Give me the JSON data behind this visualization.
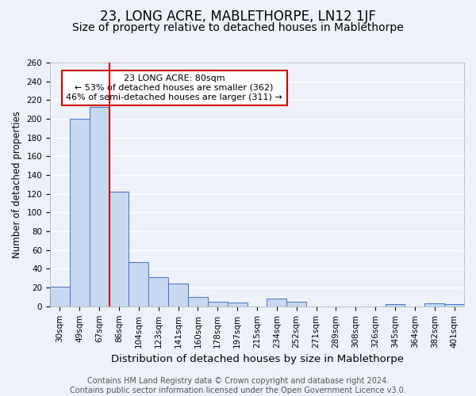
{
  "title1": "23, LONG ACRE, MABLETHORPE, LN12 1JF",
  "title2": "Size of property relative to detached houses in Mablethorpe",
  "xlabel": "Distribution of detached houses by size in Mablethorpe",
  "ylabel": "Number of detached properties",
  "bin_labels": [
    "30sqm",
    "49sqm",
    "67sqm",
    "86sqm",
    "104sqm",
    "123sqm",
    "141sqm",
    "160sqm",
    "178sqm",
    "197sqm",
    "215sqm",
    "234sqm",
    "252sqm",
    "271sqm",
    "289sqm",
    "308sqm",
    "326sqm",
    "345sqm",
    "364sqm",
    "382sqm",
    "401sqm"
  ],
  "bar_values": [
    21,
    200,
    213,
    122,
    47,
    31,
    24,
    10,
    5,
    4,
    0,
    8,
    5,
    0,
    0,
    0,
    0,
    2,
    0,
    3,
    2
  ],
  "bar_color": "#c6d9f0",
  "bar_edge_color": "#4472c4",
  "red_line_x": 2.5,
  "red_line_color": "#cc0000",
  "annotation_text": "23 LONG ACRE: 80sqm\n← 53% of detached houses are smaller (362)\n46% of semi-detached houses are larger (311) →",
  "annotation_box_color": "#ffffff",
  "annotation_box_edge": "#cc0000",
  "ylim": [
    0,
    260
  ],
  "yticks": [
    0,
    20,
    40,
    60,
    80,
    100,
    120,
    140,
    160,
    180,
    200,
    220,
    240,
    260
  ],
  "footer_text": "Contains HM Land Registry data © Crown copyright and database right 2024.\nContains public sector information licensed under the Open Government Licence v3.0.",
  "background_color": "#edf2fa",
  "grid_color": "#ffffff",
  "title1_fontsize": 12,
  "title2_fontsize": 10,
  "xlabel_fontsize": 9.5,
  "ylabel_fontsize": 8.5,
  "tick_fontsize": 7.5,
  "footer_fontsize": 7.0,
  "annotation_fontsize": 8.0
}
